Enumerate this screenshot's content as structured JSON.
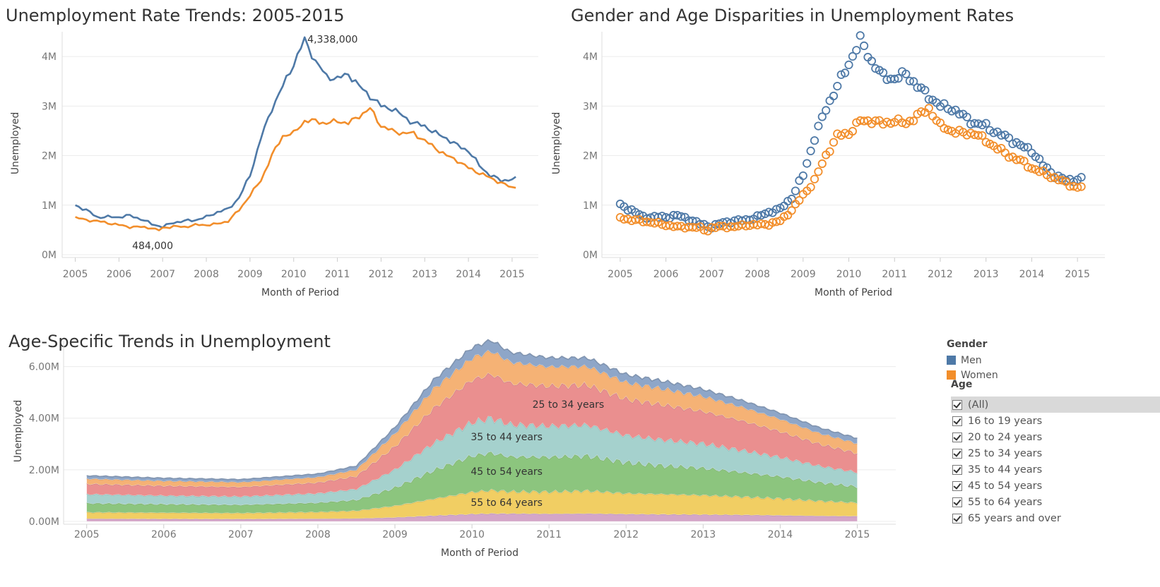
{
  "titles": {
    "c1": "Unemployment Rate Trends: 2005-2015",
    "c2": "Gender and Age Disparities in Unemployment Rates",
    "c3": "Age-Specific Trends in Unemployment"
  },
  "legend": {
    "gender_title": "Gender",
    "gender": [
      {
        "label": "Men",
        "color": "#4e79a7"
      },
      {
        "label": "Women",
        "color": "#f28e2b"
      }
    ],
    "age_title": "Age",
    "age_items": [
      "(All)",
      "16 to 19 years",
      "20 to 24 years",
      "25 to 34 years",
      "35 to 44 years",
      "45 to 54 years",
      "55 to 64 years",
      "65 years and over"
    ]
  },
  "chart_data": [
    {
      "type": "line",
      "title": "Unemployment Rate Trends: 2005-2015",
      "xlabel": "Month of Period",
      "ylabel": "Unemployed",
      "xlim": [
        2004.7,
        2015.6
      ],
      "ylim": [
        0,
        4500000
      ],
      "x_ticks": [
        "2005",
        "2006",
        "2007",
        "2008",
        "2009",
        "2010",
        "2011",
        "2012",
        "2013",
        "2014",
        "2015"
      ],
      "y_ticks": [
        "0M",
        "1M",
        "2M",
        "3M",
        "4M"
      ],
      "grid": true,
      "annotations": [
        {
          "text": "4,338,000",
          "x": 2010.25,
          "y": 4338000
        },
        {
          "text": "484,000",
          "x": 2006.9,
          "y": 484000
        }
      ],
      "series": [
        {
          "name": "Men",
          "color": "#4e79a7",
          "points": [
            [
              2005.0,
              1000000
            ],
            [
              2005.25,
              900000
            ],
            [
              2005.5,
              760000
            ],
            [
              2005.75,
              760000
            ],
            [
              2006.0,
              760000
            ],
            [
              2006.25,
              790000
            ],
            [
              2006.5,
              720000
            ],
            [
              2006.75,
              620000
            ],
            [
              2007.0,
              560000
            ],
            [
              2007.25,
              650000
            ],
            [
              2007.5,
              680000
            ],
            [
              2007.75,
              700000
            ],
            [
              2008.0,
              760000
            ],
            [
              2008.25,
              860000
            ],
            [
              2008.5,
              920000
            ],
            [
              2008.75,
              1150000
            ],
            [
              2009.0,
              1600000
            ],
            [
              2009.25,
              2350000
            ],
            [
              2009.5,
              2950000
            ],
            [
              2009.75,
              3400000
            ],
            [
              2010.0,
              3850000
            ],
            [
              2010.25,
              4338000
            ],
            [
              2010.5,
              3900000
            ],
            [
              2010.75,
              3600000
            ],
            [
              2011.0,
              3550000
            ],
            [
              2011.25,
              3650000
            ],
            [
              2011.5,
              3400000
            ],
            [
              2011.75,
              3200000
            ],
            [
              2012.0,
              3000000
            ],
            [
              2012.25,
              2950000
            ],
            [
              2012.5,
              2800000
            ],
            [
              2012.75,
              2650000
            ],
            [
              2013.0,
              2600000
            ],
            [
              2013.25,
              2450000
            ],
            [
              2013.5,
              2350000
            ],
            [
              2013.75,
              2200000
            ],
            [
              2014.0,
              2100000
            ],
            [
              2014.25,
              1800000
            ],
            [
              2014.5,
              1600000
            ],
            [
              2014.75,
              1500000
            ],
            [
              2015.0,
              1520000
            ],
            [
              2015.1,
              1530000
            ]
          ]
        },
        {
          "name": "Women",
          "color": "#f28e2b",
          "points": [
            [
              2005.0,
              750000
            ],
            [
              2005.25,
              700000
            ],
            [
              2005.5,
              680000
            ],
            [
              2005.75,
              640000
            ],
            [
              2006.0,
              600000
            ],
            [
              2006.25,
              560000
            ],
            [
              2006.5,
              560000
            ],
            [
              2006.75,
              540000
            ],
            [
              2006.9,
              484000
            ],
            [
              2007.0,
              540000
            ],
            [
              2007.25,
              570000
            ],
            [
              2007.5,
              560000
            ],
            [
              2007.75,
              600000
            ],
            [
              2008.0,
              600000
            ],
            [
              2008.25,
              620000
            ],
            [
              2008.5,
              680000
            ],
            [
              2008.75,
              900000
            ],
            [
              2009.0,
              1200000
            ],
            [
              2009.25,
              1500000
            ],
            [
              2009.5,
              2000000
            ],
            [
              2009.75,
              2400000
            ],
            [
              2010.0,
              2450000
            ],
            [
              2010.25,
              2700000
            ],
            [
              2010.5,
              2700000
            ],
            [
              2010.75,
              2650000
            ],
            [
              2011.0,
              2700000
            ],
            [
              2011.25,
              2650000
            ],
            [
              2011.5,
              2800000
            ],
            [
              2011.75,
              2950000
            ],
            [
              2012.0,
              2600000
            ],
            [
              2012.25,
              2500000
            ],
            [
              2012.5,
              2450000
            ],
            [
              2012.75,
              2450000
            ],
            [
              2013.0,
              2300000
            ],
            [
              2013.25,
              2150000
            ],
            [
              2013.5,
              2000000
            ],
            [
              2013.75,
              1900000
            ],
            [
              2014.0,
              1750000
            ],
            [
              2014.25,
              1650000
            ],
            [
              2014.5,
              1550000
            ],
            [
              2014.75,
              1450000
            ],
            [
              2015.0,
              1350000
            ],
            [
              2015.1,
              1380000
            ]
          ]
        }
      ]
    },
    {
      "type": "scatter",
      "title": "Gender and Age Disparities in Unemployment Rates",
      "xlabel": "Month of Period",
      "ylabel": "Unemployed",
      "xlim": [
        2004.6,
        2015.6
      ],
      "ylim": [
        0,
        4500000
      ],
      "x_ticks": [
        "2005",
        "2006",
        "2007",
        "2008",
        "2009",
        "2010",
        "2011",
        "2012",
        "2013",
        "2014",
        "2015"
      ],
      "y_ticks": [
        "0M",
        "1M",
        "2M",
        "3M",
        "4M"
      ],
      "grid": true,
      "series_from": "same as line chart (Men, Women), sampled monthly"
    },
    {
      "type": "area",
      "stacked": true,
      "title": "Age-Specific Trends in Unemployment",
      "xlabel": "Month of Period",
      "ylabel": "Unemployed",
      "xlim": [
        2004.7,
        2015.5
      ],
      "ylim": [
        0,
        7000000
      ],
      "x_ticks": [
        "2005",
        "2006",
        "2007",
        "2008",
        "2009",
        "2010",
        "2011",
        "2012",
        "2013",
        "2014",
        "2015"
      ],
      "y_ticks": [
        "0.00M",
        "2.00M",
        "4.00M",
        "6.00M"
      ],
      "x": [
        2005.0,
        2006.0,
        2007.0,
        2008.0,
        2008.5,
        2009.0,
        2009.5,
        2010.0,
        2010.25,
        2010.5,
        2011.0,
        2011.5,
        2012.0,
        2012.5,
        2013.0,
        2013.5,
        2014.0,
        2014.5,
        2015.0
      ],
      "series": [
        {
          "name": "65 years and over",
          "color": "#d4a6c8",
          "values": [
            100000,
            95000,
            90000,
            100000,
            110000,
            150000,
            220000,
            280000,
            300000,
            300000,
            290000,
            300000,
            280000,
            270000,
            260000,
            250000,
            230000,
            210000,
            200000
          ]
        },
        {
          "name": "55 to 64 years",
          "color": "#f1ce63",
          "values": [
            250000,
            240000,
            230000,
            260000,
            300000,
            450000,
            650000,
            850000,
            900000,
            850000,
            850000,
            880000,
            800000,
            780000,
            750000,
            700000,
            650000,
            580000,
            520000
          ]
        },
        {
          "name": "45 to 54 years",
          "color": "#8cc57e",
          "values": [
            350000,
            330000,
            320000,
            360000,
            420000,
            700000,
            1100000,
            1400000,
            1450000,
            1350000,
            1350000,
            1350000,
            1200000,
            1100000,
            1050000,
            950000,
            850000,
            720000,
            620000
          ]
        },
        {
          "name": "35 to 44 years",
          "color": "#a5d1cd",
          "values": [
            350000,
            330000,
            320000,
            360000,
            420000,
            700000,
            1050000,
            1300000,
            1350000,
            1250000,
            1200000,
            1200000,
            1050000,
            1000000,
            950000,
            850000,
            750000,
            640000,
            560000
          ]
        },
        {
          "name": "25 to 34 years",
          "color": "#ea8f8f",
          "values": [
            400000,
            380000,
            370000,
            420000,
            500000,
            900000,
            1350000,
            1650000,
            1700000,
            1600000,
            1550000,
            1550000,
            1400000,
            1350000,
            1250000,
            1150000,
            1000000,
            850000,
            740000
          ]
        },
        {
          "name": "20 to 24 years",
          "color": "#f5b275",
          "values": [
            200000,
            190000,
            185000,
            210000,
            250000,
            500000,
            750000,
            850000,
            900000,
            820000,
            750000,
            720000,
            650000,
            620000,
            580000,
            530000,
            480000,
            420000,
            380000
          ]
        },
        {
          "name": "16 to 19 years",
          "color": "#8ea6c8",
          "values": [
            120000,
            110000,
            110000,
            130000,
            150000,
            250000,
            350000,
            400000,
            420000,
            380000,
            350000,
            330000,
            310000,
            300000,
            280000,
            260000,
            240000,
            220000,
            200000
          ]
        }
      ],
      "labels": [
        {
          "text": "25 to 34 years",
          "x": 2011.25,
          "y": 4400000
        },
        {
          "text": "35 to 44 years",
          "x": 2010.45,
          "y": 3150000
        },
        {
          "text": "45 to 54 years",
          "x": 2010.45,
          "y": 1800000
        },
        {
          "text": "55 to 64 years",
          "x": 2010.45,
          "y": 600000
        }
      ]
    }
  ]
}
